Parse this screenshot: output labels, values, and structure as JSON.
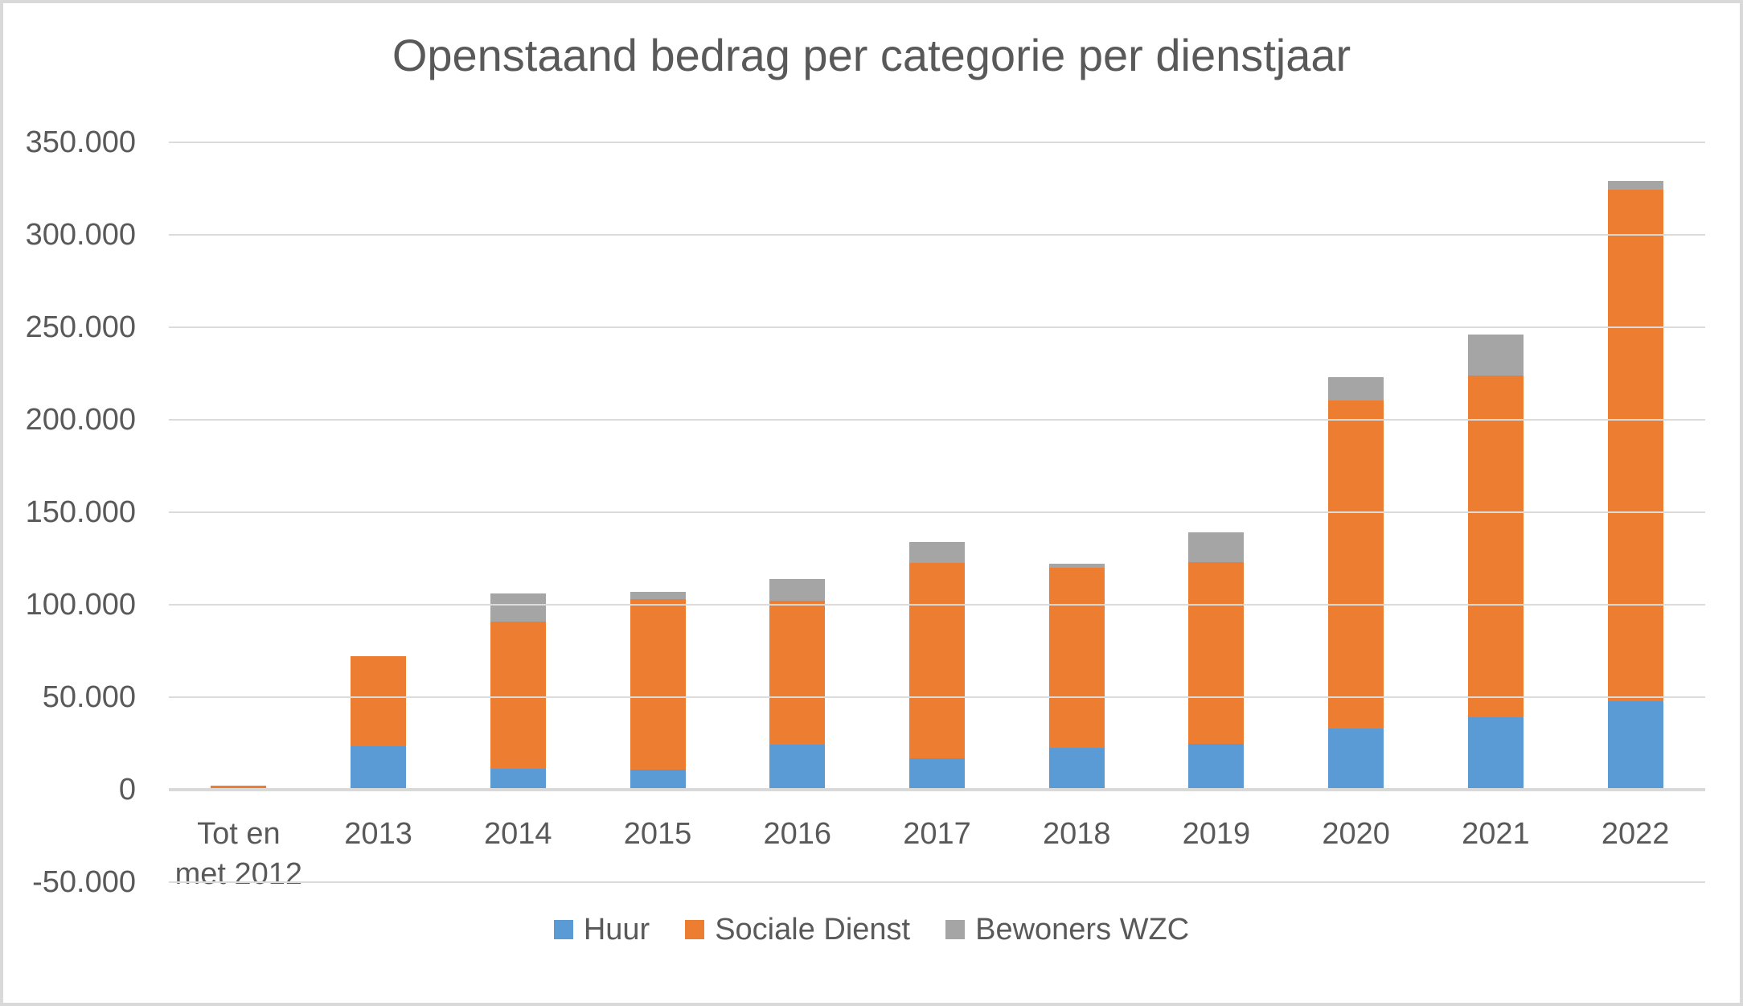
{
  "chart_data": {
    "type": "bar",
    "stacked": true,
    "title": "Openstaand bedrag per categorie per dienstjaar",
    "categories": [
      "Tot en\nmet 2012",
      "2013",
      "2014",
      "2015",
      "2016",
      "2017",
      "2018",
      "2019",
      "2020",
      "2021",
      "2022"
    ],
    "series": [
      {
        "name": "Huur",
        "color": "#5B9BD5",
        "values": [
          0,
          23500,
          11500,
          11000,
          24500,
          17000,
          22500,
          25000,
          33000,
          39000,
          48000
        ]
      },
      {
        "name": "Sociale Dienst",
        "color": "#ED7D31",
        "values": [
          2000,
          48500,
          79500,
          92000,
          77500,
          105500,
          97500,
          98000,
          177500,
          185000,
          276500
        ]
      },
      {
        "name": "Bewoners WZC",
        "color": "#A5A5A5",
        "values": [
          0,
          0,
          15000,
          4000,
          12000,
          11500,
          2000,
          16000,
          12500,
          22000,
          4500
        ]
      }
    ],
    "totals": [
      2000,
      72000,
      106000,
      107000,
      114000,
      134000,
      122000,
      139000,
      223000,
      246000,
      329000
    ],
    "ylim": [
      -50000,
      350000
    ],
    "ytick_step": 50000,
    "ytick_labels": [
      "350.000",
      "300.000",
      "250.000",
      "200.000",
      "150.000",
      "100.000",
      "50.000",
      "0",
      "-50.000"
    ],
    "xlabel": "",
    "ylabel": "",
    "grid": true,
    "legend_position": "bottom"
  },
  "palette": {
    "text": "#595959",
    "gridline": "#DBDBDB",
    "axis_line": "#D9D9D9",
    "border": "#D9D9D9",
    "background": "#FFFFFF"
  }
}
